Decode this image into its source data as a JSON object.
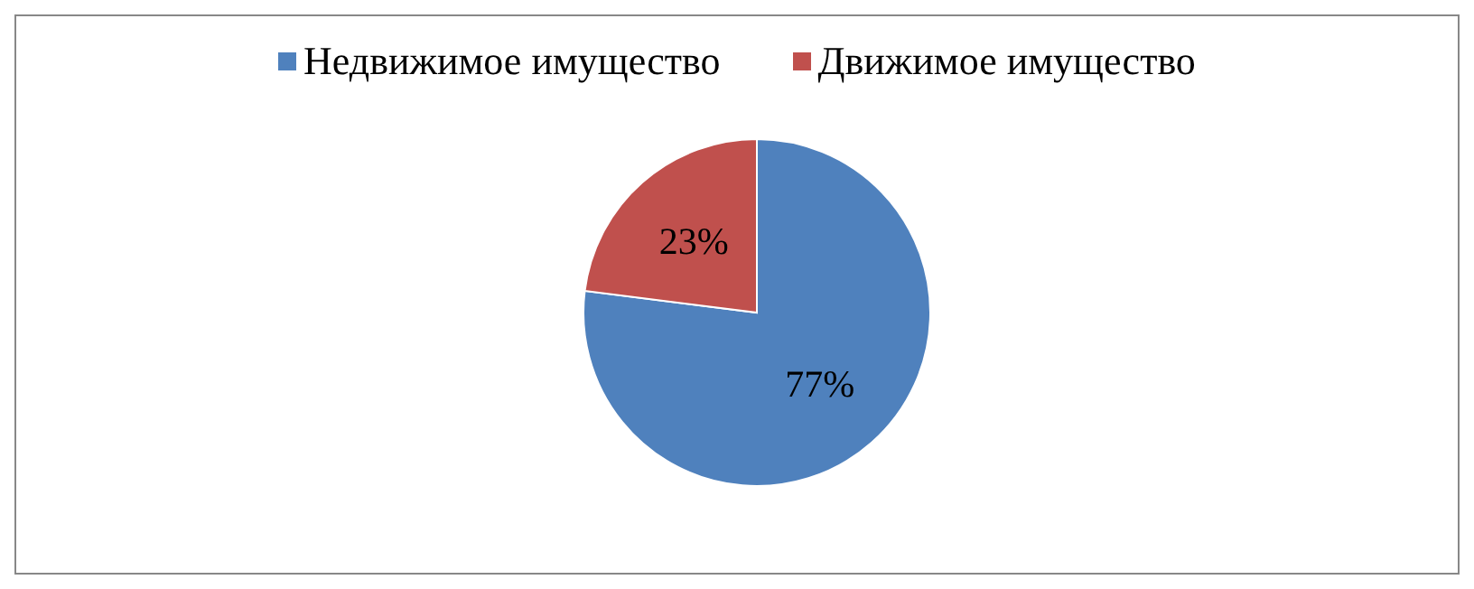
{
  "chart_data": {
    "type": "pie",
    "categories": [
      "Недвижимое имущество",
      "Движимое имущество"
    ],
    "values": [
      77,
      23
    ],
    "colors": [
      "#4f81bd",
      "#c0504d"
    ],
    "value_labels": [
      "77%",
      "23%"
    ],
    "legend": "top"
  }
}
